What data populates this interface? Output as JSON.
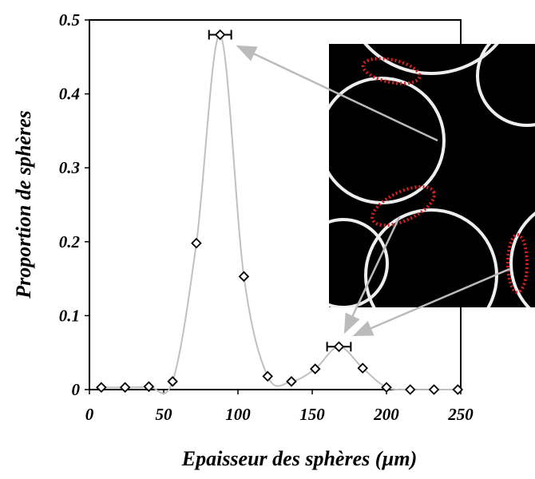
{
  "chart_data": {
    "type": "scatter",
    "xlabel": "Epaisseur des sphères (µm)",
    "ylabel": "Proportion de sphères",
    "x": [
      8,
      24,
      40,
      56,
      72,
      88,
      104,
      120,
      136,
      152,
      168,
      184,
      200,
      216,
      232,
      248
    ],
    "values": [
      0.003,
      0.003,
      0.004,
      0.011,
      0.198,
      0.48,
      0.153,
      0.018,
      0.011,
      0.028,
      0.058,
      0.029,
      0.003,
      0.0,
      0.0,
      0.0
    ],
    "xerr": [
      null,
      null,
      null,
      null,
      null,
      7.5,
      null,
      null,
      null,
      null,
      8,
      null,
      null,
      null,
      null,
      null
    ],
    "xlim": [
      0,
      250
    ],
    "ylim": [
      0,
      0.5
    ],
    "xticks": [
      0,
      50,
      100,
      150,
      200,
      250
    ],
    "yticks": [
      0,
      0.1,
      0.2,
      0.3,
      0.4,
      0.5
    ],
    "line_color": "#c0c0c0",
    "marker_color": "#000000"
  }
}
